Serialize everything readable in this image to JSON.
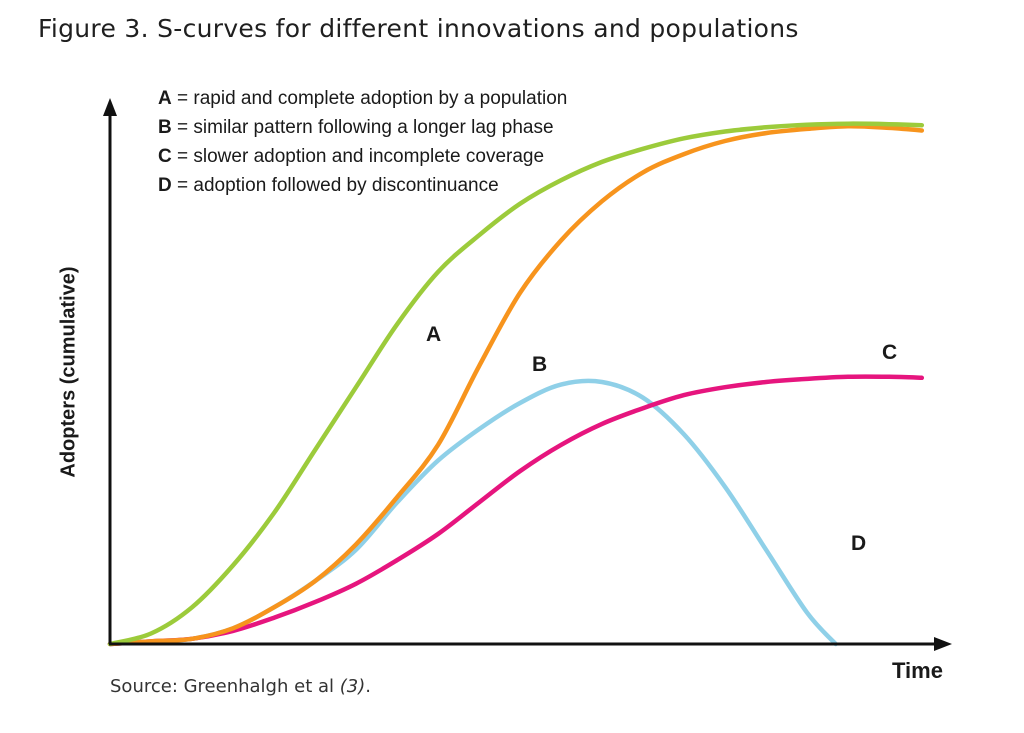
{
  "figure": {
    "title": "Figure 3. S-curves for different innovations and populations",
    "source_prefix": "Source: Greenhalgh et al ",
    "source_ref": "(3)",
    "source_suffix": "."
  },
  "chart_data": {
    "type": "line",
    "title": "Figure 3. S-curves for different innovations and populations",
    "xlabel": "Time",
    "ylabel": "Adopters (cumulative)",
    "xlim": [
      0,
      100
    ],
    "ylim": [
      0,
      100
    ],
    "grid": false,
    "legend_position": "top-left",
    "legend": [
      {
        "key": "A",
        "sep": " = ",
        "text": "rapid and complete adoption by a population"
      },
      {
        "key": "B",
        "sep": " = ",
        "text": "similar pattern following a longer lag phase"
      },
      {
        "key": "C",
        "sep": " = ",
        "text": "slower adoption and incomplete coverage"
      },
      {
        "key": "D",
        "sep": " = ",
        "text": "adoption followed by discontinuance"
      }
    ],
    "series": [
      {
        "name": "A",
        "color": "#9ccb3b",
        "x": [
          0,
          5,
          10,
          15,
          20,
          25,
          30,
          35,
          40,
          45,
          50,
          55,
          60,
          65,
          70,
          75,
          80,
          85,
          90,
          95,
          99
        ],
        "y": [
          0,
          2,
          7,
          15,
          25,
          37,
          49,
          61,
          71,
          78,
          84,
          88.5,
          92,
          94.5,
          96.5,
          97.8,
          98.6,
          99.1,
          99.3,
          99.2,
          99
        ]
      },
      {
        "name": "B",
        "color": "#f7941d",
        "x": [
          0,
          5,
          10,
          15,
          20,
          25,
          30,
          35,
          40,
          45,
          50,
          55,
          60,
          65,
          70,
          75,
          80,
          85,
          90,
          95,
          99
        ],
        "y": [
          0,
          0.5,
          1,
          3,
          7,
          12,
          19,
          28,
          38,
          53,
          67,
          77,
          84.5,
          90,
          93.5,
          96,
          97.5,
          98.3,
          98.8,
          98.5,
          98
        ]
      },
      {
        "name": "C",
        "color": "#e6157e",
        "x": [
          0,
          5,
          10,
          15,
          20,
          25,
          30,
          35,
          40,
          45,
          50,
          55,
          60,
          65,
          70,
          75,
          80,
          85,
          90,
          95,
          99
        ],
        "y": [
          0,
          0.5,
          1,
          2.5,
          5,
          8,
          11.5,
          16,
          21,
          27,
          33,
          38,
          42,
          45,
          47.5,
          49,
          50,
          50.6,
          51,
          51,
          50.8
        ]
      },
      {
        "name": "D",
        "color": "#8fd0e8",
        "x": [
          0,
          5,
          10,
          15,
          20,
          25,
          30,
          35,
          40,
          45,
          50,
          55,
          60,
          65,
          70,
          75,
          80,
          85,
          88.5
        ],
        "y": [
          0,
          0.5,
          1,
          3,
          7,
          12,
          18,
          27,
          35,
          41,
          46,
          49.5,
          50,
          47,
          40,
          30,
          18,
          6,
          0
        ]
      }
    ]
  }
}
